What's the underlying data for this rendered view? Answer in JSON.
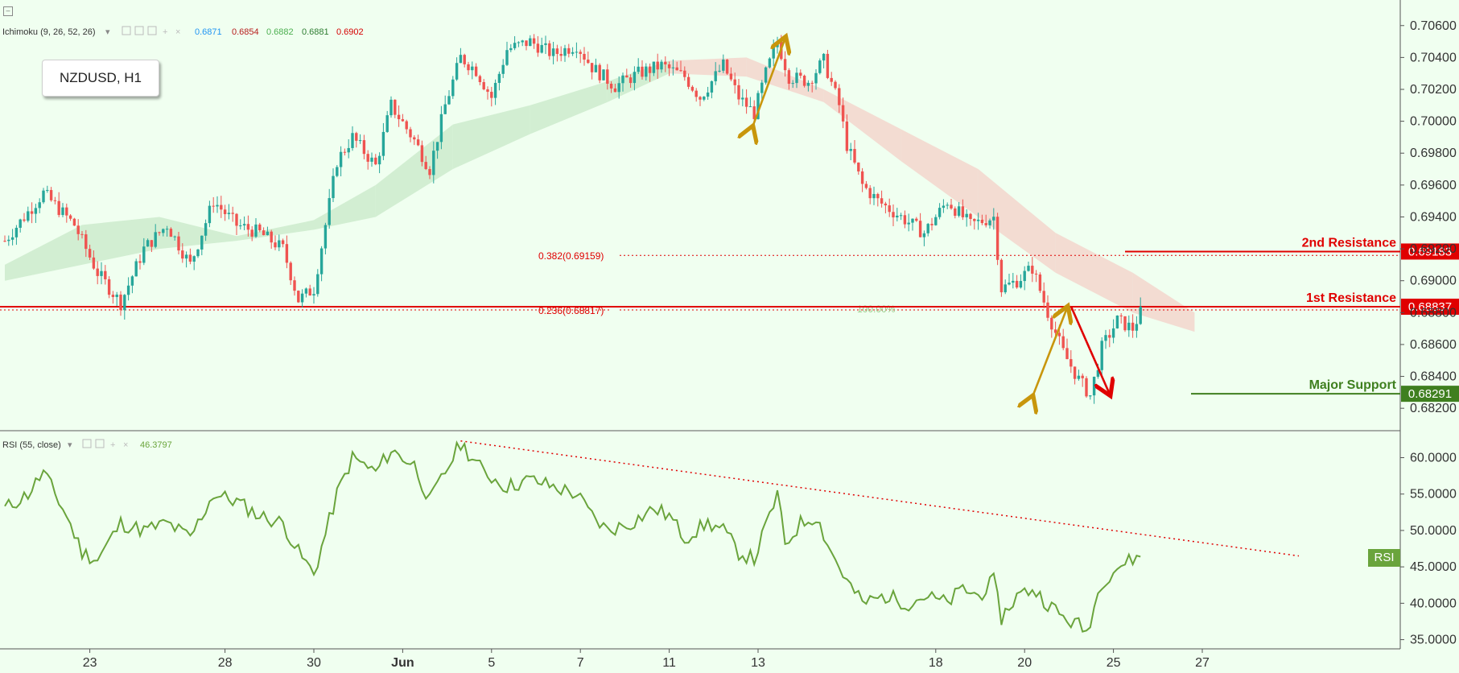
{
  "symbol": "NZDUSD, H1",
  "ichimoku_legend": {
    "label": "Ichimoku (9, 26, 52, 26)",
    "values": [
      {
        "text": "0.6871",
        "color": "#2196f3"
      },
      {
        "text": "0.6854",
        "color": "#b71c1c"
      },
      {
        "text": "0.6882",
        "color": "#4caf50"
      },
      {
        "text": "0.6881",
        "color": "#2e7d32"
      },
      {
        "text": "0.6902",
        "color": "#d50000"
      }
    ]
  },
  "rsi_legend": {
    "label": "RSI (55, close)",
    "value": "46.3797",
    "value_color": "#6aa43c"
  },
  "rsi_tag": "RSI",
  "colors": {
    "background": "#f0fff0",
    "bull": "#26a69a",
    "bear": "#ef5350",
    "resistance": "#e00000",
    "support": "#3f7f1f",
    "rsi_line": "#6aa43c",
    "fib": "#e00000",
    "arrow_gold": "#c8960c",
    "cloud_green": "#cdebcc",
    "cloud_red": "#f3d6cc"
  },
  "chart_data": [
    {
      "type": "candlestick",
      "title": "NZDUSD, H1",
      "ylim": [
        0.6811,
        0.7072
      ],
      "y_ticks": [
        "0.70600",
        "0.70400",
        "0.70200",
        "0.70000",
        "0.69800",
        "0.69600",
        "0.69400",
        "0.69200",
        "0.69000",
        "0.68800",
        "0.68600",
        "0.68400",
        "0.68200"
      ],
      "x_ticks": [
        "23",
        "28",
        "30",
        "Jun",
        "5",
        "7",
        "11",
        "13",
        "18",
        "20",
        "25",
        "27"
      ],
      "x_tick_index": [
        22,
        57,
        80,
        103,
        126,
        149,
        172,
        195,
        241,
        264,
        287,
        310
      ],
      "n_candles": 321,
      "close_path": [
        [
          0,
          0.6925
        ],
        [
          10,
          0.6955
        ],
        [
          18,
          0.6935
        ],
        [
          24,
          0.6905
        ],
        [
          30,
          0.6886
        ],
        [
          36,
          0.692
        ],
        [
          42,
          0.6935
        ],
        [
          48,
          0.691
        ],
        [
          54,
          0.695
        ],
        [
          60,
          0.6935
        ],
        [
          66,
          0.693
        ],
        [
          72,
          0.692
        ],
        [
          76,
          0.6888
        ],
        [
          80,
          0.6895
        ],
        [
          86,
          0.6975
        ],
        [
          90,
          0.699
        ],
        [
          96,
          0.6972
        ],
        [
          100,
          0.701
        ],
        [
          106,
          0.6988
        ],
        [
          110,
          0.697
        ],
        [
          114,
          0.701
        ],
        [
          118,
          0.704
        ],
        [
          122,
          0.7032
        ],
        [
          126,
          0.7015
        ],
        [
          130,
          0.7045
        ],
        [
          136,
          0.705
        ],
        [
          142,
          0.7042
        ],
        [
          148,
          0.7048
        ],
        [
          152,
          0.7034
        ],
        [
          158,
          0.7022
        ],
        [
          164,
          0.703
        ],
        [
          170,
          0.7035
        ],
        [
          176,
          0.7028
        ],
        [
          180,
          0.7015
        ],
        [
          186,
          0.7035
        ],
        [
          190,
          0.7015
        ],
        [
          194,
          0.7005
        ],
        [
          197,
          0.703
        ],
        [
          200,
          0.705
        ],
        [
          203,
          0.7028
        ],
        [
          208,
          0.7025
        ],
        [
          212,
          0.7038
        ],
        [
          216,
          0.701
        ],
        [
          218,
          0.6985
        ],
        [
          222,
          0.696
        ],
        [
          226,
          0.695
        ],
        [
          232,
          0.694
        ],
        [
          238,
          0.693
        ],
        [
          244,
          0.695
        ],
        [
          250,
          0.6935
        ],
        [
          256,
          0.694
        ],
        [
          258,
          0.6895
        ],
        [
          262,
          0.69
        ],
        [
          266,
          0.6908
        ],
        [
          270,
          0.688
        ],
        [
          274,
          0.6855
        ],
        [
          278,
          0.6838
        ],
        [
          281,
          0.6828
        ],
        [
          284,
          0.6858
        ],
        [
          288,
          0.6875
        ],
        [
          292,
          0.687
        ],
        [
          294,
          0.688
        ]
      ],
      "ichimoku_cloud_points": [
        [
          0,
          0.69,
          0.691
        ],
        [
          20,
          0.691,
          0.6935
        ],
        [
          40,
          0.692,
          0.694
        ],
        [
          60,
          0.6925,
          0.6928
        ],
        [
          80,
          0.6932,
          0.6938
        ],
        [
          96,
          0.694,
          0.696
        ],
        [
          116,
          0.697,
          0.6998
        ],
        [
          136,
          0.6992,
          0.701
        ],
        [
          156,
          0.7012,
          0.7025
        ],
        [
          172,
          0.703,
          0.7038
        ],
        [
          192,
          0.7028,
          0.704
        ],
        [
          212,
          0.7012,
          0.702
        ],
        [
          232,
          0.6975,
          0.6995
        ],
        [
          252,
          0.694,
          0.697
        ],
        [
          272,
          0.6905,
          0.693
        ],
        [
          292,
          0.688,
          0.6905
        ],
        [
          308,
          0.6868,
          0.688
        ]
      ],
      "levels": [
        {
          "name": "2nd Resistance",
          "value": "0.69183",
          "y": 0.69183,
          "color": "#e00000"
        },
        {
          "name": "1st Resistance",
          "value": "0.68837",
          "y": 0.68837,
          "color": "#e00000"
        },
        {
          "name": "Major Support",
          "value": "0.68291",
          "y": 0.68291,
          "color": "#3f7f1f"
        }
      ],
      "fib_levels": [
        {
          "label": "0.382(0.69159)",
          "y": 0.69159
        },
        {
          "label": "0.236(0.68817)",
          "y": 0.68817
        }
      ],
      "annotation": "100.00%"
    },
    {
      "type": "line",
      "title": "RSI (55, close)",
      "ylim": [
        34.4,
        62.6
      ],
      "y_ticks": [
        "60.0000",
        "55.0000",
        "50.0000",
        "45.0000",
        "40.0000",
        "35.0000"
      ],
      "last_value": 46.3797,
      "series_path": [
        [
          0,
          53
        ],
        [
          6,
          55
        ],
        [
          10,
          58
        ],
        [
          16,
          52
        ],
        [
          20,
          47
        ],
        [
          24,
          46
        ],
        [
          30,
          51
        ],
        [
          36,
          50
        ],
        [
          42,
          51
        ],
        [
          48,
          49
        ],
        [
          54,
          55
        ],
        [
          60,
          54
        ],
        [
          66,
          52
        ],
        [
          72,
          51
        ],
        [
          76,
          47
        ],
        [
          80,
          44
        ],
        [
          86,
          55
        ],
        [
          90,
          60
        ],
        [
          96,
          58
        ],
        [
          100,
          61
        ],
        [
          106,
          59
        ],
        [
          110,
          54
        ],
        [
          114,
          58
        ],
        [
          118,
          62
        ],
        [
          124,
          58
        ],
        [
          130,
          56
        ],
        [
          136,
          57
        ],
        [
          142,
          56
        ],
        [
          148,
          55
        ],
        [
          152,
          52
        ],
        [
          156,
          50
        ],
        [
          162,
          51
        ],
        [
          168,
          53
        ],
        [
          172,
          52
        ],
        [
          176,
          49
        ],
        [
          182,
          51
        ],
        [
          186,
          50
        ],
        [
          190,
          47
        ],
        [
          194,
          46
        ],
        [
          198,
          52
        ],
        [
          200,
          55
        ],
        [
          202,
          48
        ],
        [
          206,
          51
        ],
        [
          210,
          52
        ],
        [
          214,
          47
        ],
        [
          218,
          43
        ],
        [
          222,
          40
        ],
        [
          228,
          41
        ],
        [
          234,
          40
        ],
        [
          238,
          41
        ],
        [
          244,
          40
        ],
        [
          248,
          42
        ],
        [
          252,
          41
        ],
        [
          256,
          43
        ],
        [
          258,
          38
        ],
        [
          262,
          41
        ],
        [
          266,
          42
        ],
        [
          270,
          40
        ],
        [
          274,
          38
        ],
        [
          278,
          37
        ],
        [
          280,
          36
        ],
        [
          284,
          43
        ],
        [
          288,
          45
        ],
        [
          292,
          46
        ],
        [
          294,
          46.4
        ]
      ],
      "trendline": {
        "from": [
          118,
          62.3
        ],
        "to": [
          335,
          46.5
        ]
      }
    }
  ]
}
